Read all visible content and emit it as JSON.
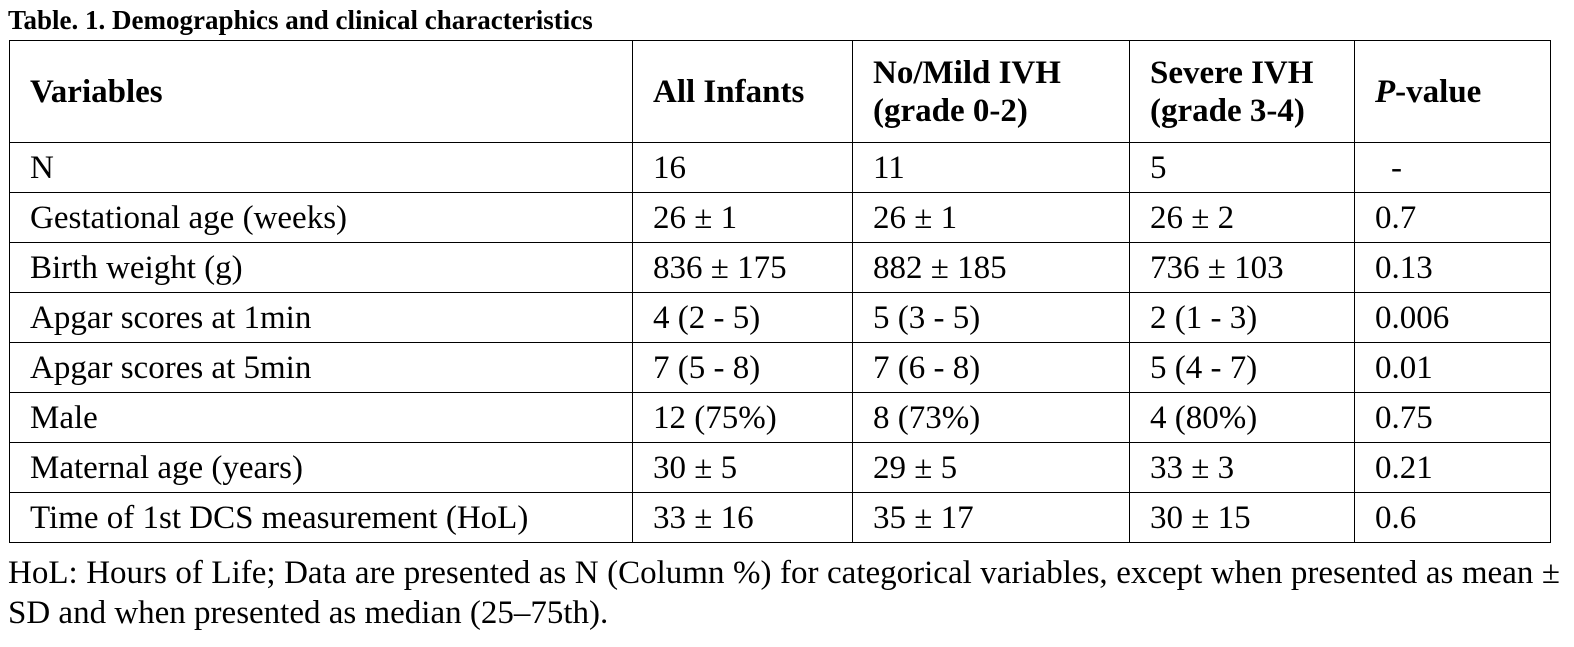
{
  "caption": "Table. 1. Demographics and clinical characteristics",
  "headers": {
    "variables": "Variables",
    "all": "All Infants",
    "mild_line1": "No/Mild IVH",
    "mild_line2": "(grade 0-2)",
    "severe_line1": "Severe IVH",
    "severe_line2": "(grade 3-4)",
    "pvalue_italic": "P",
    "pvalue_rest": "-value"
  },
  "rows": [
    {
      "variable": "N",
      "all": "16",
      "mild": "11",
      "severe": "5",
      "p": "-"
    },
    {
      "variable": "Gestational age (weeks)",
      "all": "26 ± 1",
      "mild": "26 ± 1",
      "severe": "26 ± 2",
      "p": "0.7"
    },
    {
      "variable": "Birth weight (g)",
      "all": "836 ± 175",
      "mild": "882 ± 185",
      "severe": "736 ± 103",
      "p": "0.13"
    },
    {
      "variable": "Apgar scores at 1min",
      "all": "4 (2 - 5)",
      "mild": "5 (3 - 5)",
      "severe": "2 (1 - 3)",
      "p": "0.006"
    },
    {
      "variable": "Apgar scores at 5min",
      "all": "7 (5 - 8)",
      "mild": "7 (6 - 8)",
      "severe": "5 (4 - 7)",
      "p": "0.01"
    },
    {
      "variable": "Male",
      "all": "12 (75%)",
      "mild": "8 (73%)",
      "severe": "4 (80%)",
      "p": "0.75"
    },
    {
      "variable": "Maternal age (years)",
      "all": "30 ± 5",
      "mild": "29 ± 5",
      "severe": "33 ± 3",
      "p": "0.21"
    },
    {
      "variable": "Time of 1st DCS measurement (HoL)",
      "all": "33 ± 16",
      "mild": "35 ± 17",
      "severe": "30 ± 15",
      "p": "0.6"
    }
  ],
  "footnote": "HoL: Hours of Life; Data are presented as N (Column %) for categorical variables, except when presented as mean ± SD and when presented as median (25–75th)."
}
